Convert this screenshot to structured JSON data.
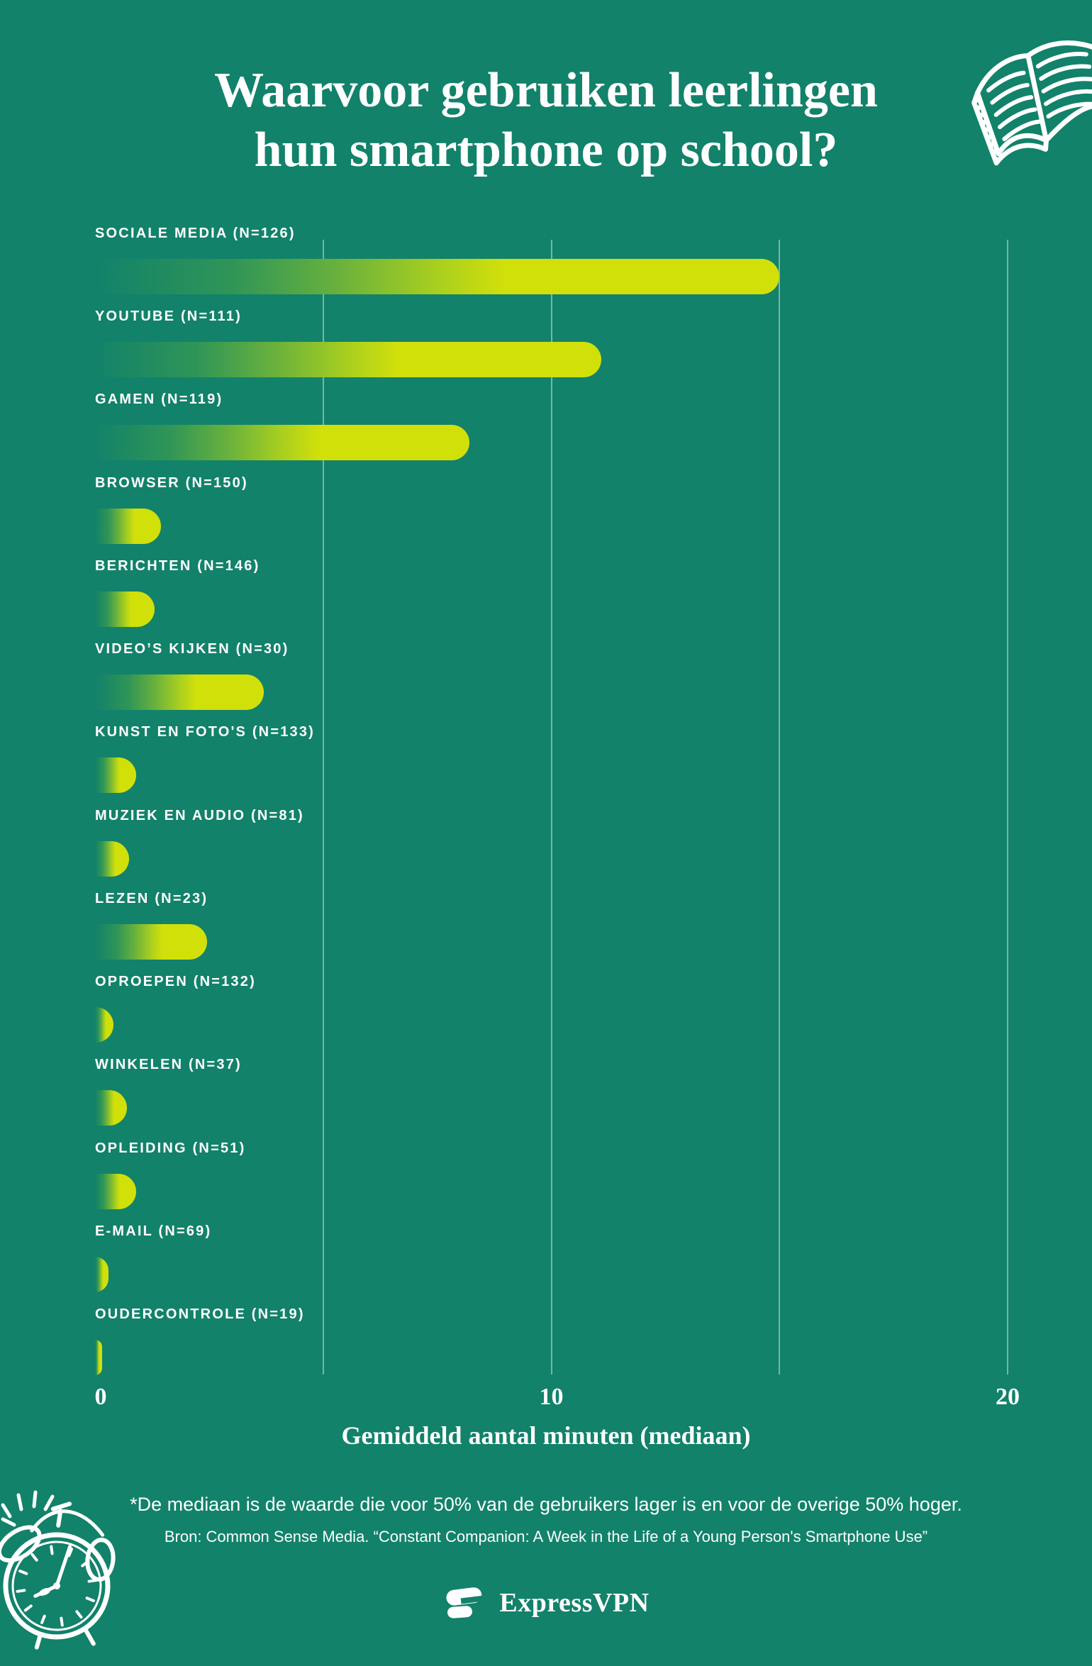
{
  "page": {
    "background_color": "#12826A",
    "bar_yellow": "#D2E00A",
    "gridline_color": "rgba(255,255,255,0.42)",
    "text_color": "#FFFFFF"
  },
  "title": {
    "line1": "Waarvoor gebruiken leerlingen",
    "line2": "hun smartphone op school?"
  },
  "chart_data": {
    "type": "bar",
    "orientation": "horizontal",
    "categories": [
      "SOCIALE MEDIA (N=126)",
      "YOUTUBE (N=111)",
      "GAMEN (N=119)",
      "BROWSER (N=150)",
      "BERICHTEN (N=146)",
      "VIDEO’S KIJKEN (N=30)",
      "KUNST EN FOTO'S (N=133)",
      "MUZIEK EN AUDIO (N=81)",
      "LEZEN (N=23)",
      "OPROEPEN (N=132)",
      "WINKELEN (N=37)",
      "OPLEIDING (N=51)",
      "E-MAIL (N=69)",
      "OUDERCONTROLE (N=19)"
    ],
    "values": [
      15,
      11.1,
      8.2,
      1.45,
      1.3,
      3.7,
      0.9,
      0.75,
      2.45,
      0.4,
      0.7,
      0.9,
      0.3,
      0.15
    ],
    "title": "Waarvoor gebruiken leerlingen hun smartphone op school?",
    "xlabel": "Gemiddeld aantal minuten (mediaan)",
    "ylabel": "",
    "xlim": [
      0,
      20
    ],
    "xtick_values": [
      0,
      10,
      20
    ],
    "xtick_labels": [
      "0",
      "10",
      "20"
    ],
    "gridlines_at": [
      5,
      10,
      15,
      20
    ],
    "grid": true,
    "legend": false,
    "bar_gradient": [
      "#12826A",
      "#D2E00A"
    ]
  },
  "footer": {
    "note": "*De mediaan is de waarde die voor 50% van de gebruikers lager is en voor de overige 50% hoger.",
    "source": "Bron: Common Sense Media. “Constant Companion: A Week in the Life of a Young Person's Smartphone Use”",
    "logo_text": "ExpressVPN"
  },
  "decorations": {
    "top_right_icon": "open-book",
    "bottom_left_icon": "alarm-clock",
    "logo_icon": "expressvpn-mark"
  }
}
